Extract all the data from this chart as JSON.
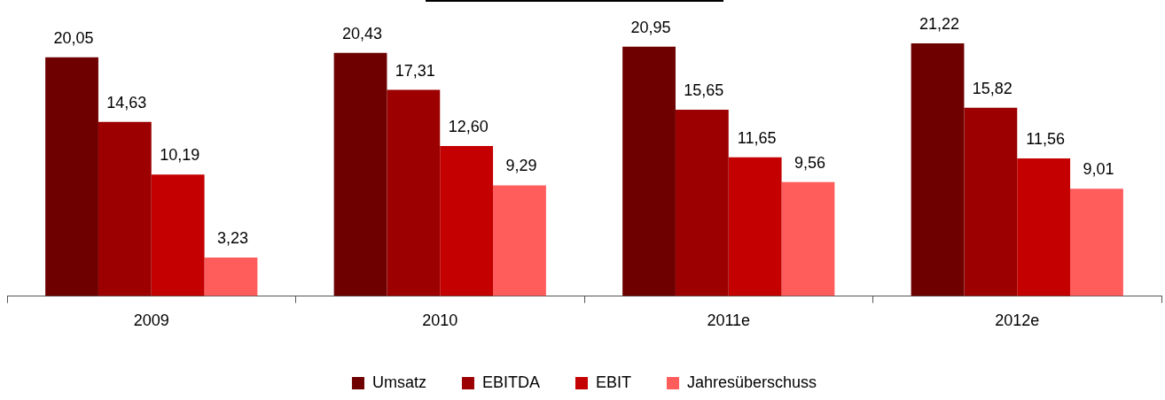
{
  "chart_data": {
    "type": "bar",
    "categories": [
      "2009",
      "2010",
      "2011e",
      "2012e"
    ],
    "legend": "bottom",
    "series": [
      {
        "name": "Umsatz",
        "color": "#6e0000",
        "values": [
          20.05,
          20.43,
          20.95,
          21.22
        ],
        "value_labels": [
          "20,05",
          "20,43",
          "20,95",
          "21,22"
        ]
      },
      {
        "name": "EBITDA",
        "color": "#9c0000",
        "values": [
          14.63,
          17.31,
          15.65,
          15.82
        ],
        "value_labels": [
          "14,63",
          "17,31",
          "15,65",
          "15,82"
        ]
      },
      {
        "name": "EBIT",
        "color": "#c40000",
        "values": [
          10.19,
          12.6,
          11.65,
          11.56
        ],
        "value_labels": [
          "10,19",
          "12,60",
          "11,65",
          "11,56"
        ]
      },
      {
        "name": "Jahresüberschuss",
        "color": "#ff5c5c",
        "values": [
          3.23,
          9.29,
          9.56,
          9.01
        ],
        "value_labels": [
          "3,23",
          "9,29",
          "9,56",
          "9,01"
        ]
      }
    ]
  }
}
